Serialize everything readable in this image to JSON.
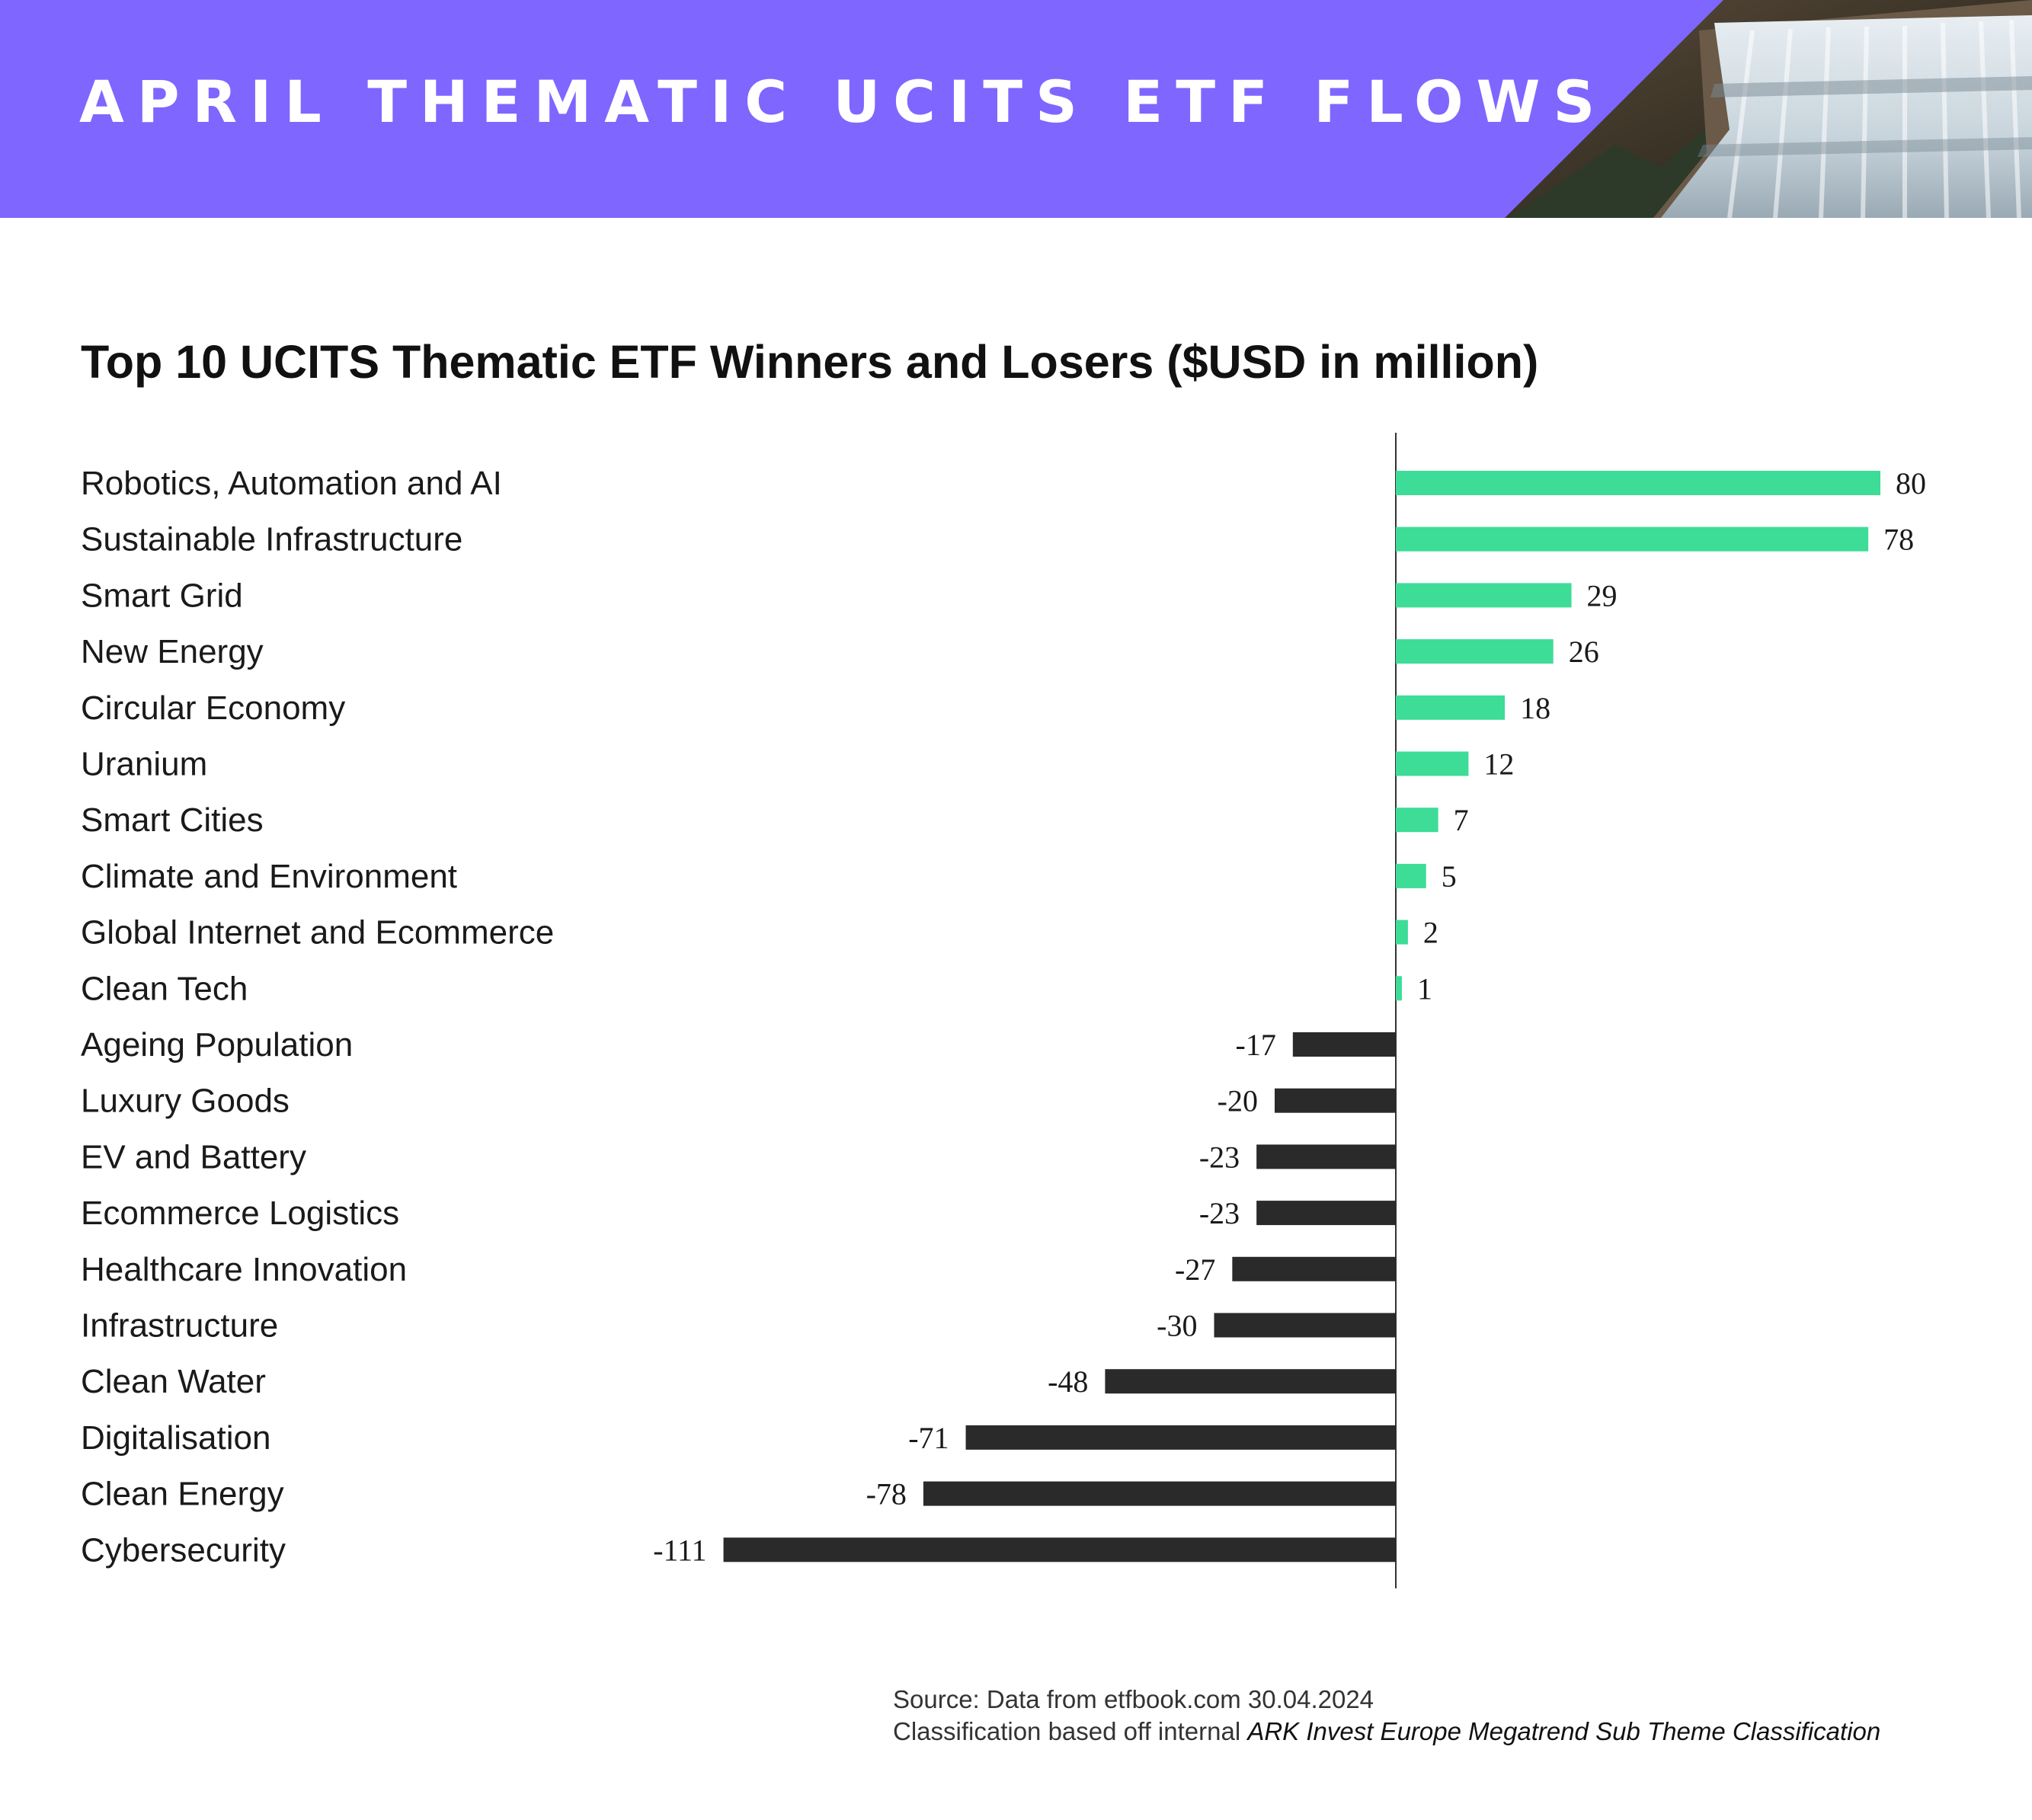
{
  "header": {
    "title": "APRIL THEMATIC UCITS ETF FLOWS",
    "background_color": "#7f66ff",
    "photo": "waterfall-photo"
  },
  "chart_data": {
    "type": "bar",
    "orientation": "horizontal",
    "title": "Top 10 UCITS Thematic ETF Winners and Losers ($USD in million)",
    "categories": [
      "Robotics, Automation and AI",
      "Sustainable Infrastructure",
      "Smart Grid",
      "New Energy",
      "Circular Economy",
      "Uranium",
      "Smart Cities",
      "Climate and Environment",
      "Global Internet and Ecommerce",
      "Clean Tech",
      "Ageing Population",
      "Luxury Goods",
      "EV and Battery",
      "Ecommerce Logistics",
      "Healthcare Innovation",
      "Infrastructure",
      "Clean Water",
      "Digitalisation",
      "Clean Energy",
      "Cybersecurity"
    ],
    "values": [
      80,
      78,
      29,
      26,
      18,
      12,
      7,
      5,
      2,
      1,
      -17,
      -20,
      -23,
      -23,
      -27,
      -30,
      -48,
      -71,
      -78,
      -111
    ],
    "value_labels": [
      "80",
      "78",
      "29",
      "26",
      "18",
      "12",
      "7",
      "5",
      "2",
      "1",
      "-17",
      "-20",
      "-23",
      "-23",
      "-27",
      "-30",
      "-48",
      "-71",
      "-78",
      "-111"
    ],
    "xlim": [
      -111,
      80
    ],
    "positive_color": "#3ddc97",
    "negative_color": "#2a2a2a",
    "grid": false,
    "legend": "none"
  },
  "footer": {
    "source_line": "Source: Data from etfbook.com 30.04.2024",
    "classification_prefix": "Classification based off internal ",
    "classification_name": "ARK Invest Europe Megatrend Sub Theme Classification"
  }
}
